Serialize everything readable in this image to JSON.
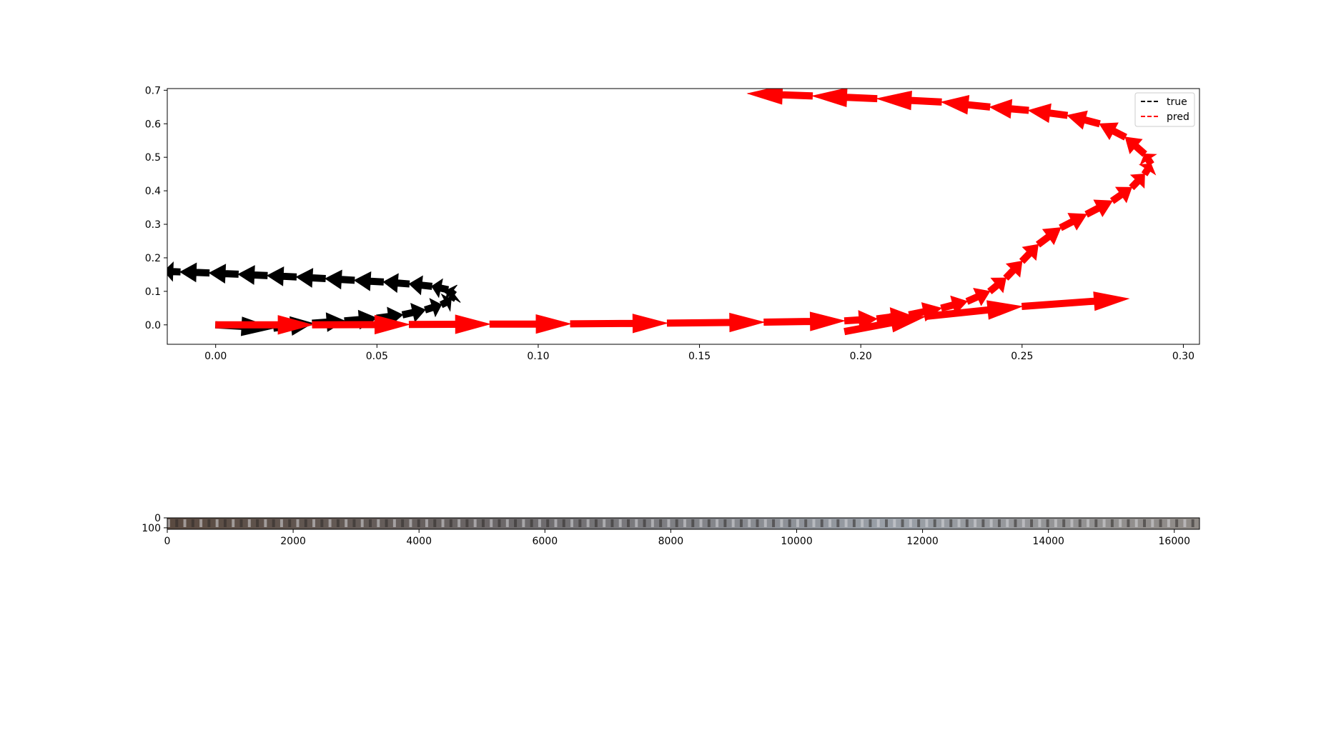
{
  "colors": {
    "true": "#000000",
    "pred": "#ff0000",
    "background": "#ffffff"
  },
  "chart_data": [
    {
      "type": "line",
      "title": "",
      "xlabel": "",
      "ylabel": "",
      "xlim": [
        -0.015,
        0.305
      ],
      "ylim": [
        -0.058,
        0.705
      ],
      "x_ticks": [
        "0.00",
        "0.05",
        "0.10",
        "0.15",
        "0.20",
        "0.25",
        "0.30"
      ],
      "x_tick_values": [
        0.0,
        0.05,
        0.1,
        0.15,
        0.2,
        0.25,
        0.3
      ],
      "y_ticks": [
        "0.0",
        "0.1",
        "0.2",
        "0.3",
        "0.4",
        "0.5",
        "0.6",
        "0.7"
      ],
      "y_tick_values": [
        0.0,
        0.1,
        0.2,
        0.3,
        0.4,
        0.5,
        0.6,
        0.7
      ],
      "grid": false,
      "legend": {
        "position": "top-right",
        "entries": [
          "true",
          "pred"
        ]
      },
      "series": [
        {
          "name": "true",
          "style": "dashed",
          "markers": "arrows",
          "x": [
            0.0,
            0.018,
            0.03,
            0.04,
            0.05,
            0.058,
            0.065,
            0.07,
            0.073,
            0.074,
            0.072,
            0.067,
            0.06,
            0.052,
            0.043,
            0.034,
            0.025,
            0.016,
            0.007,
            -0.002,
            -0.011,
            -0.016
          ],
          "y": [
            0.0,
            -0.01,
            0.005,
            0.012,
            0.02,
            0.03,
            0.045,
            0.06,
            0.075,
            0.09,
            0.105,
            0.115,
            0.122,
            0.128,
            0.133,
            0.138,
            0.143,
            0.147,
            0.151,
            0.155,
            0.158,
            0.16
          ]
        },
        {
          "name": "pred",
          "style": "dashed",
          "markers": "arrows",
          "x": [
            0.0,
            0.03,
            0.06,
            0.085,
            0.11,
            0.14,
            0.17,
            0.195,
            0.205,
            0.215,
            0.225,
            0.233,
            0.24,
            0.245,
            0.25,
            0.255,
            0.262,
            0.27,
            0.278,
            0.284,
            0.288,
            0.29,
            0.288,
            0.282,
            0.274,
            0.264,
            0.252,
            0.24,
            0.225,
            0.205,
            0.185,
            0.165
          ],
          "y": [
            0.0,
            0.0,
            0.001,
            0.002,
            0.003,
            0.005,
            0.008,
            0.012,
            0.018,
            0.03,
            0.05,
            0.07,
            0.1,
            0.14,
            0.19,
            0.24,
            0.29,
            0.33,
            0.37,
            0.41,
            0.45,
            0.48,
            0.51,
            0.56,
            0.6,
            0.625,
            0.64,
            0.65,
            0.665,
            0.675,
            0.683,
            0.69
          ]
        },
        {
          "name": "",
          "style": "none",
          "markers": "arrows",
          "x": [
            0.195,
            0.22,
            0.25,
            0.283
          ],
          "y": [
            -0.02,
            0.025,
            0.055,
            0.078
          ]
        }
      ]
    },
    {
      "type": "heatmap",
      "title": "",
      "xlim": [
        0,
        16400
      ],
      "ylim": [
        115,
        0
      ],
      "x_ticks": [
        "0",
        "2000",
        "4000",
        "6000",
        "8000",
        "10000",
        "12000",
        "14000",
        "16000"
      ],
      "x_tick_values": [
        0,
        2000,
        4000,
        6000,
        8000,
        10000,
        12000,
        14000,
        16000
      ],
      "y_ticks": [
        "0",
        "100"
      ],
      "y_tick_values": [
        0,
        100
      ],
      "frames": 128
    }
  ]
}
